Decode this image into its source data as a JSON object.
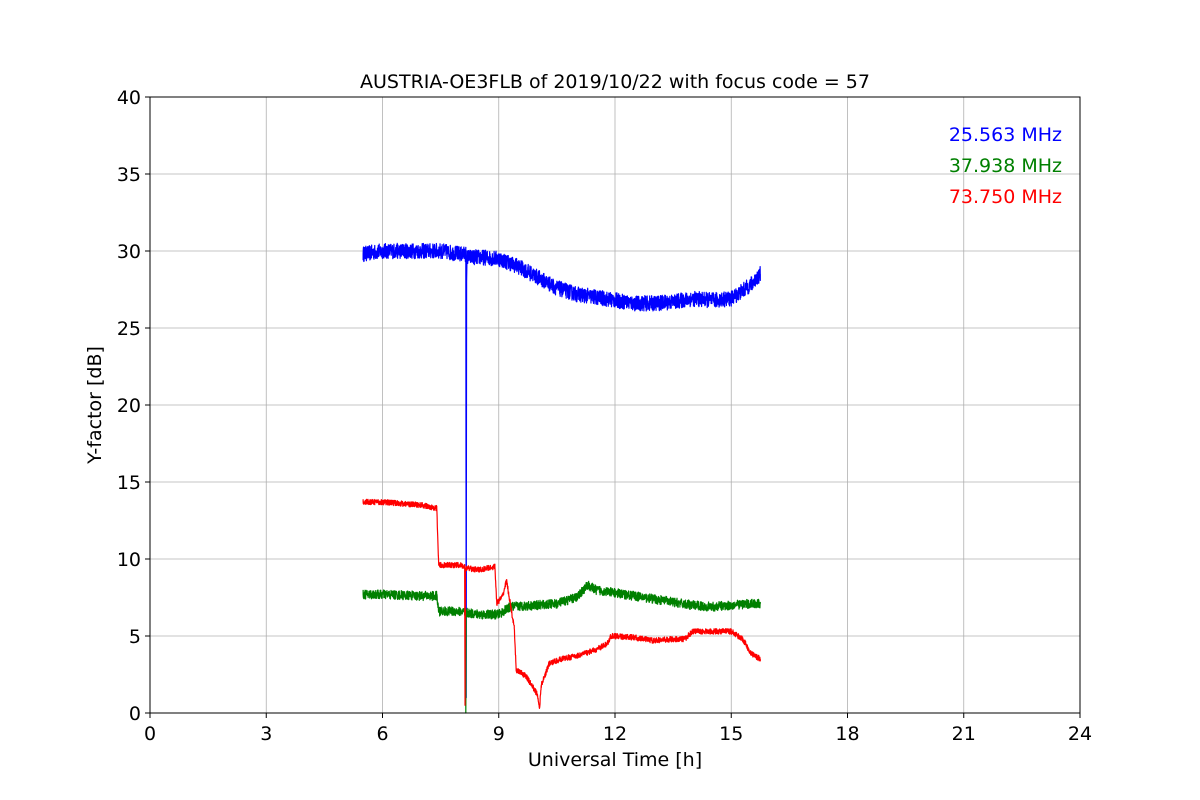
{
  "chart_data": {
    "type": "line",
    "title": "AUSTRIA-OE3FLB of 2019/10/22 with focus code = 57",
    "xlabel": "Universal Time [h]",
    "ylabel": "Y-factor [dB]",
    "xlim": [
      0,
      24
    ],
    "ylim": [
      0,
      40
    ],
    "xticks": [
      0,
      3,
      6,
      9,
      12,
      15,
      18,
      21,
      24
    ],
    "yticks": [
      0,
      5,
      10,
      15,
      20,
      25,
      30,
      35,
      40
    ],
    "grid": true,
    "legend_position": "top-right",
    "series": [
      {
        "name": "25.563 MHz",
        "color": "#0000ff",
        "noise": 0.5,
        "x": [
          5.5,
          6.0,
          6.5,
          7.0,
          7.5,
          8.0,
          8.15,
          8.16,
          8.17,
          8.18,
          8.5,
          9.0,
          9.5,
          10.0,
          10.5,
          11.0,
          11.5,
          12.0,
          12.5,
          13.0,
          13.5,
          14.0,
          14.5,
          15.0,
          15.5,
          15.75
        ],
        "y": [
          29.8,
          30.0,
          30.0,
          30.0,
          30.0,
          29.8,
          29.8,
          1.0,
          28.0,
          29.6,
          29.6,
          29.5,
          29.0,
          28.3,
          27.6,
          27.2,
          27.0,
          26.8,
          26.6,
          26.6,
          26.7,
          26.9,
          26.8,
          26.9,
          27.8,
          28.5
        ]
      },
      {
        "name": "37.938 MHz",
        "color": "#008000",
        "noise": 0.3,
        "x": [
          5.5,
          6.0,
          7.0,
          7.4,
          7.45,
          8.0,
          8.14,
          8.15,
          8.16,
          8.18,
          8.5,
          9.0,
          9.3,
          10.0,
          10.5,
          11.0,
          11.3,
          11.5,
          12.0,
          12.5,
          13.0,
          13.5,
          14.0,
          14.5,
          15.0,
          15.5,
          15.75
        ],
        "y": [
          7.7,
          7.7,
          7.6,
          7.6,
          6.6,
          6.6,
          6.5,
          0.0,
          6.5,
          6.5,
          6.4,
          6.4,
          6.9,
          7.0,
          7.1,
          7.5,
          8.3,
          8.0,
          7.8,
          7.6,
          7.4,
          7.2,
          7.0,
          6.9,
          7.0,
          7.1,
          7.1
        ]
      },
      {
        "name": "73.750 MHz",
        "color": "#ff0000",
        "noise": 0.18,
        "x": [
          5.5,
          6.0,
          7.0,
          7.4,
          7.45,
          8.0,
          8.12,
          8.13,
          8.14,
          8.15,
          8.5,
          8.9,
          8.95,
          9.1,
          9.2,
          9.4,
          9.45,
          9.7,
          10.0,
          10.05,
          10.1,
          10.3,
          10.6,
          11.0,
          11.5,
          11.8,
          11.9,
          12.5,
          13.0,
          13.5,
          13.8,
          14.0,
          14.5,
          15.0,
          15.3,
          15.5,
          15.75
        ],
        "y": [
          13.7,
          13.7,
          13.5,
          13.3,
          9.6,
          9.6,
          9.5,
          0.5,
          9.4,
          9.4,
          9.3,
          9.5,
          7.1,
          7.6,
          8.6,
          5.5,
          2.8,
          2.4,
          1.2,
          0.3,
          1.8,
          3.2,
          3.5,
          3.7,
          4.1,
          4.5,
          5.0,
          4.9,
          4.7,
          4.8,
          4.8,
          5.3,
          5.3,
          5.3,
          4.8,
          3.9,
          3.5
        ]
      }
    ]
  }
}
